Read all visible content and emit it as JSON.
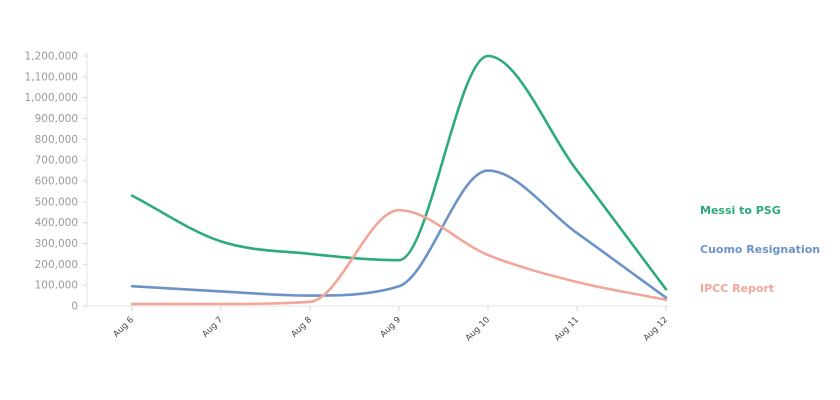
{
  "chart_data": {
    "type": "line",
    "categories": [
      "Aug 6",
      "Aug 7",
      "Aug 8",
      "Aug 9",
      "Aug 10",
      "Aug 11",
      "Aug 12"
    ],
    "yticks": [
      "0",
      "100,000",
      "200,000",
      "300,000",
      "400,000",
      "500,000",
      "600,000",
      "700,000",
      "800,000",
      "900,000",
      "1,000,000",
      "1,100,000",
      "1,200,000"
    ],
    "ylim": [
      0,
      1200000
    ],
    "grid": false,
    "legend_position": "right",
    "series": [
      {
        "name": "Messi to PSG",
        "color": "#2eaa7b",
        "values": [
          530000,
          310000,
          250000,
          220000,
          1200000,
          650000,
          80000
        ]
      },
      {
        "name": "Cuomo Resignation",
        "color": "#6c93c7",
        "values": [
          95000,
          70000,
          50000,
          95000,
          650000,
          350000,
          40000
        ]
      },
      {
        "name": "IPCC Report",
        "color": "#f2a698",
        "values": [
          10000,
          10000,
          20000,
          460000,
          245000,
          115000,
          30000
        ]
      }
    ]
  }
}
